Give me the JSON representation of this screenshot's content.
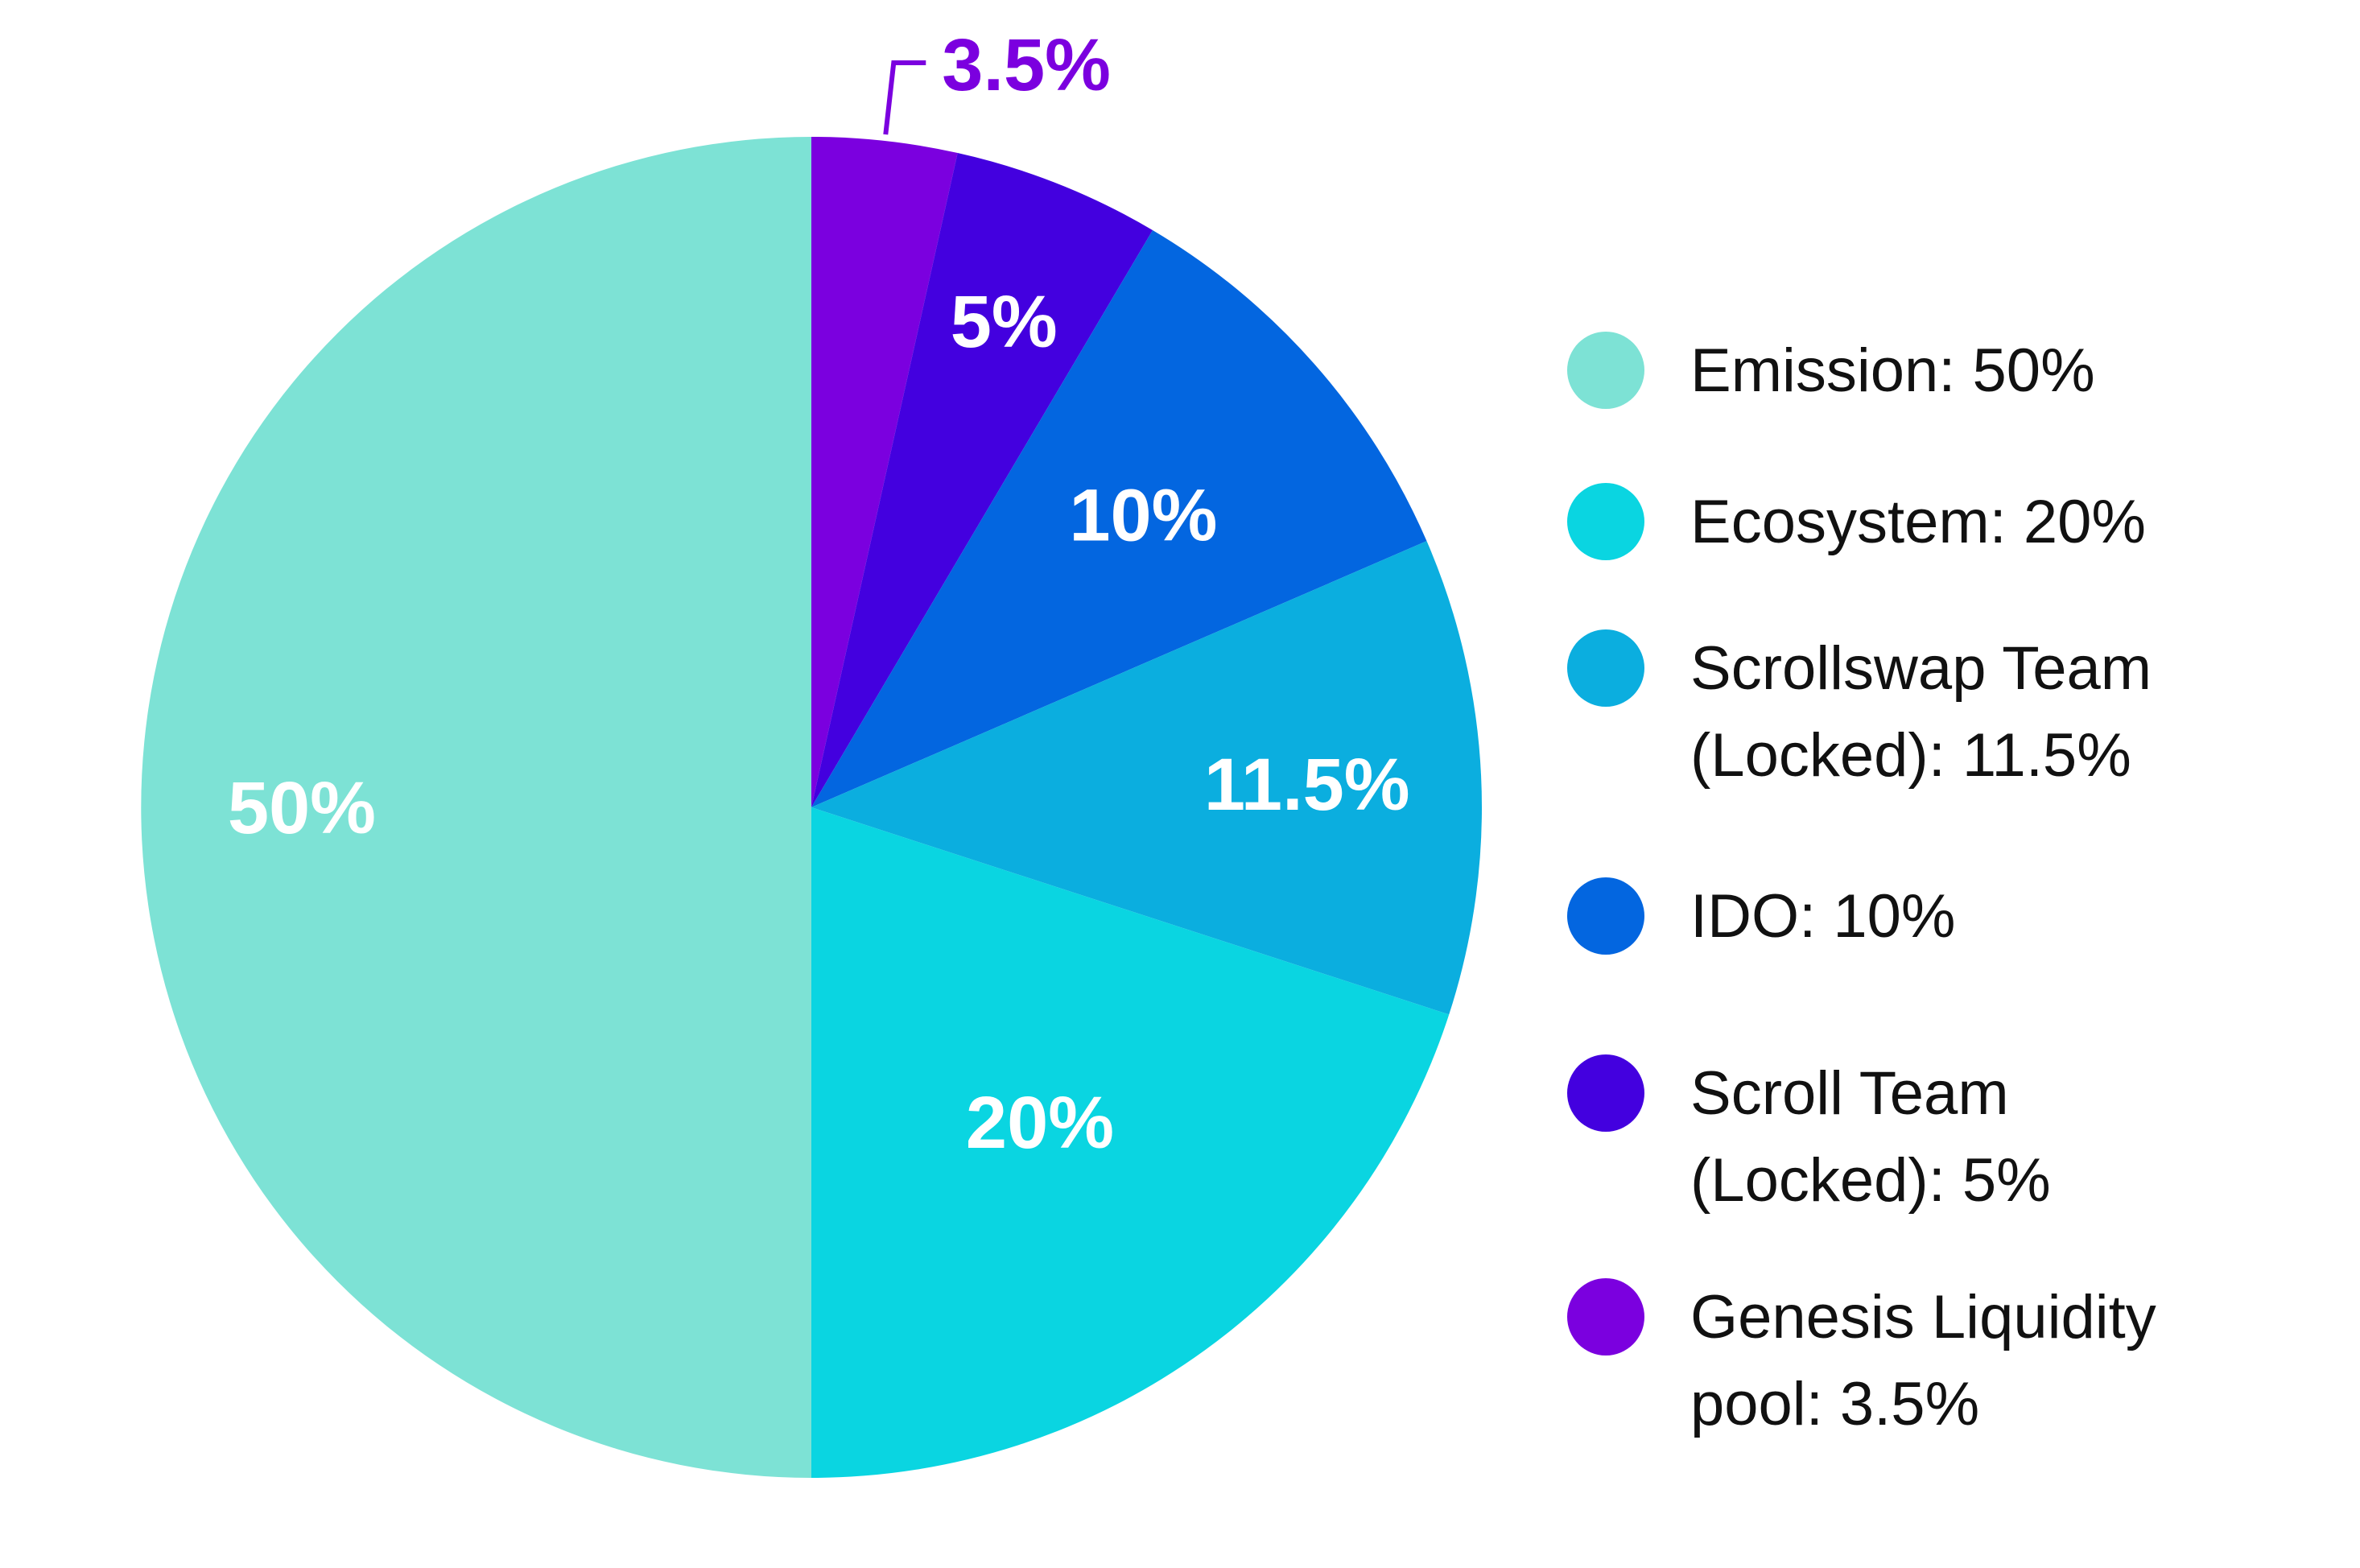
{
  "chart_data": {
    "type": "pie",
    "start_angle_deg": 0,
    "direction": "clockwise",
    "series": [
      {
        "slices": [
          {
            "label": "Emission",
            "value": 50,
            "color": "#7DE2D5",
            "data_label": "50%",
            "legend": [
              "Emission: 50%"
            ]
          },
          {
            "label": "Ecosystem",
            "value": 20,
            "color": "#0AD5E1",
            "data_label": "20%",
            "legend": [
              "Ecosystem: 20%"
            ]
          },
          {
            "label": "Scrollswap Team (Locked)",
            "value": 11.5,
            "color": "#0BAEDF",
            "data_label": "11.5%",
            "legend": [
              "Scrollswap Team",
              " (Locked): 11.5%"
            ]
          },
          {
            "label": "IDO",
            "value": 10,
            "color": "#0366E0",
            "data_label": "10%",
            "legend": [
              "IDO: 10%"
            ]
          },
          {
            "label": "Scroll Team (Locked)",
            "value": 5,
            "color": "#4300DF",
            "data_label": "5%",
            "legend": [
              "Scroll Team",
              "(Locked): 5%"
            ]
          },
          {
            "label": "Genesis Liquidity pool",
            "value": 3.5,
            "color": "#7B00DF",
            "data_label": "3.5%",
            "legend": [
              "Genesis Liquidity",
              "pool: 3.5%"
            ]
          }
        ]
      }
    ],
    "legend_position": "right"
  }
}
